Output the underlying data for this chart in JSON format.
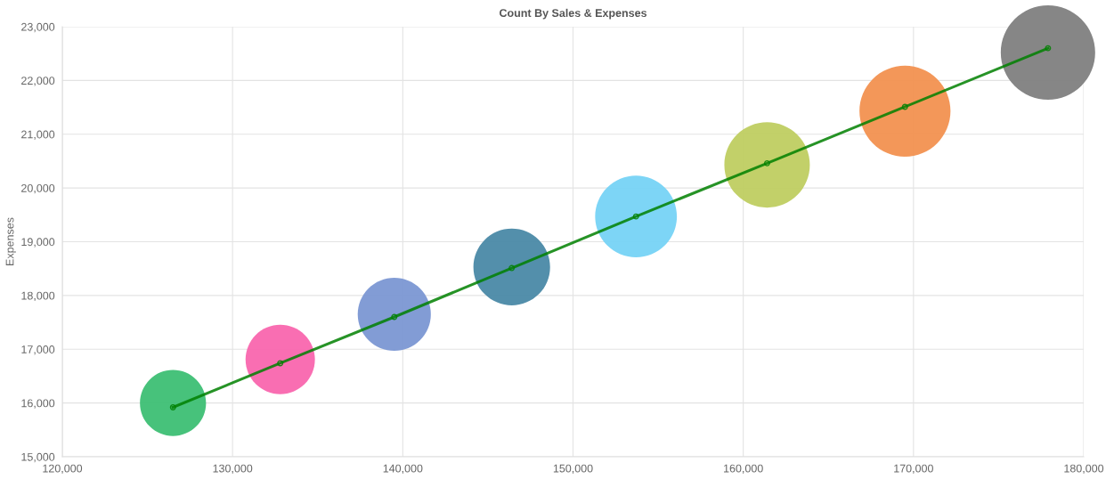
{
  "chart_data": {
    "type": "bubble",
    "title": "Count By Sales & Expenses",
    "ylabel": "Expenses",
    "xlim": [
      120000,
      180000
    ],
    "xticks": [
      {
        "value": 120000,
        "label": "120,000"
      },
      {
        "value": 130000,
        "label": "130,000"
      },
      {
        "value": 140000,
        "label": "140,000"
      },
      {
        "value": 150000,
        "label": "150,000"
      },
      {
        "value": 160000,
        "label": "160,000"
      },
      {
        "value": 170000,
        "label": "170,000"
      },
      {
        "value": 180000,
        "label": "180,000"
      }
    ],
    "ylim": [
      15000,
      23000
    ],
    "yticks": [
      {
        "value": 15000,
        "label": "15,000"
      },
      {
        "value": 16000,
        "label": "16,000"
      },
      {
        "value": 17000,
        "label": "17,000"
      },
      {
        "value": 18000,
        "label": "18,000"
      },
      {
        "value": 19000,
        "label": "19,000"
      },
      {
        "value": 20000,
        "label": "20,000"
      },
      {
        "value": 21000,
        "label": "21,000"
      },
      {
        "value": 22000,
        "label": "22,000"
      },
      {
        "value": 23000,
        "label": "23,000"
      }
    ],
    "grid": true,
    "series": [
      {
        "x": [
          126500,
          132800,
          139500,
          146400,
          153700,
          161400,
          169500,
          177900
        ],
        "values": [
          16000,
          16810,
          17650,
          18530,
          19470,
          20430,
          21430,
          22520
        ],
        "sizes": [
          0.49,
          0.54,
          0.6,
          0.66,
          0.75,
          0.82,
          0.93,
          1
        ],
        "colors": [
          "#3dbf74",
          "#f966ae",
          "#7b97d3",
          "#4a89a6",
          "#76d3f5",
          "#bfce61",
          "#f29150",
          "#7f8080"
        ]
      },
      {
        "type": "line",
        "x": [
          126500,
          132800,
          139500,
          146400,
          153700,
          161400,
          169500,
          177900
        ],
        "values": [
          15920,
          16740,
          17600,
          18510,
          19470,
          20460,
          21510,
          22600
        ],
        "color": "#008000",
        "marker": "circle"
      }
    ]
  }
}
